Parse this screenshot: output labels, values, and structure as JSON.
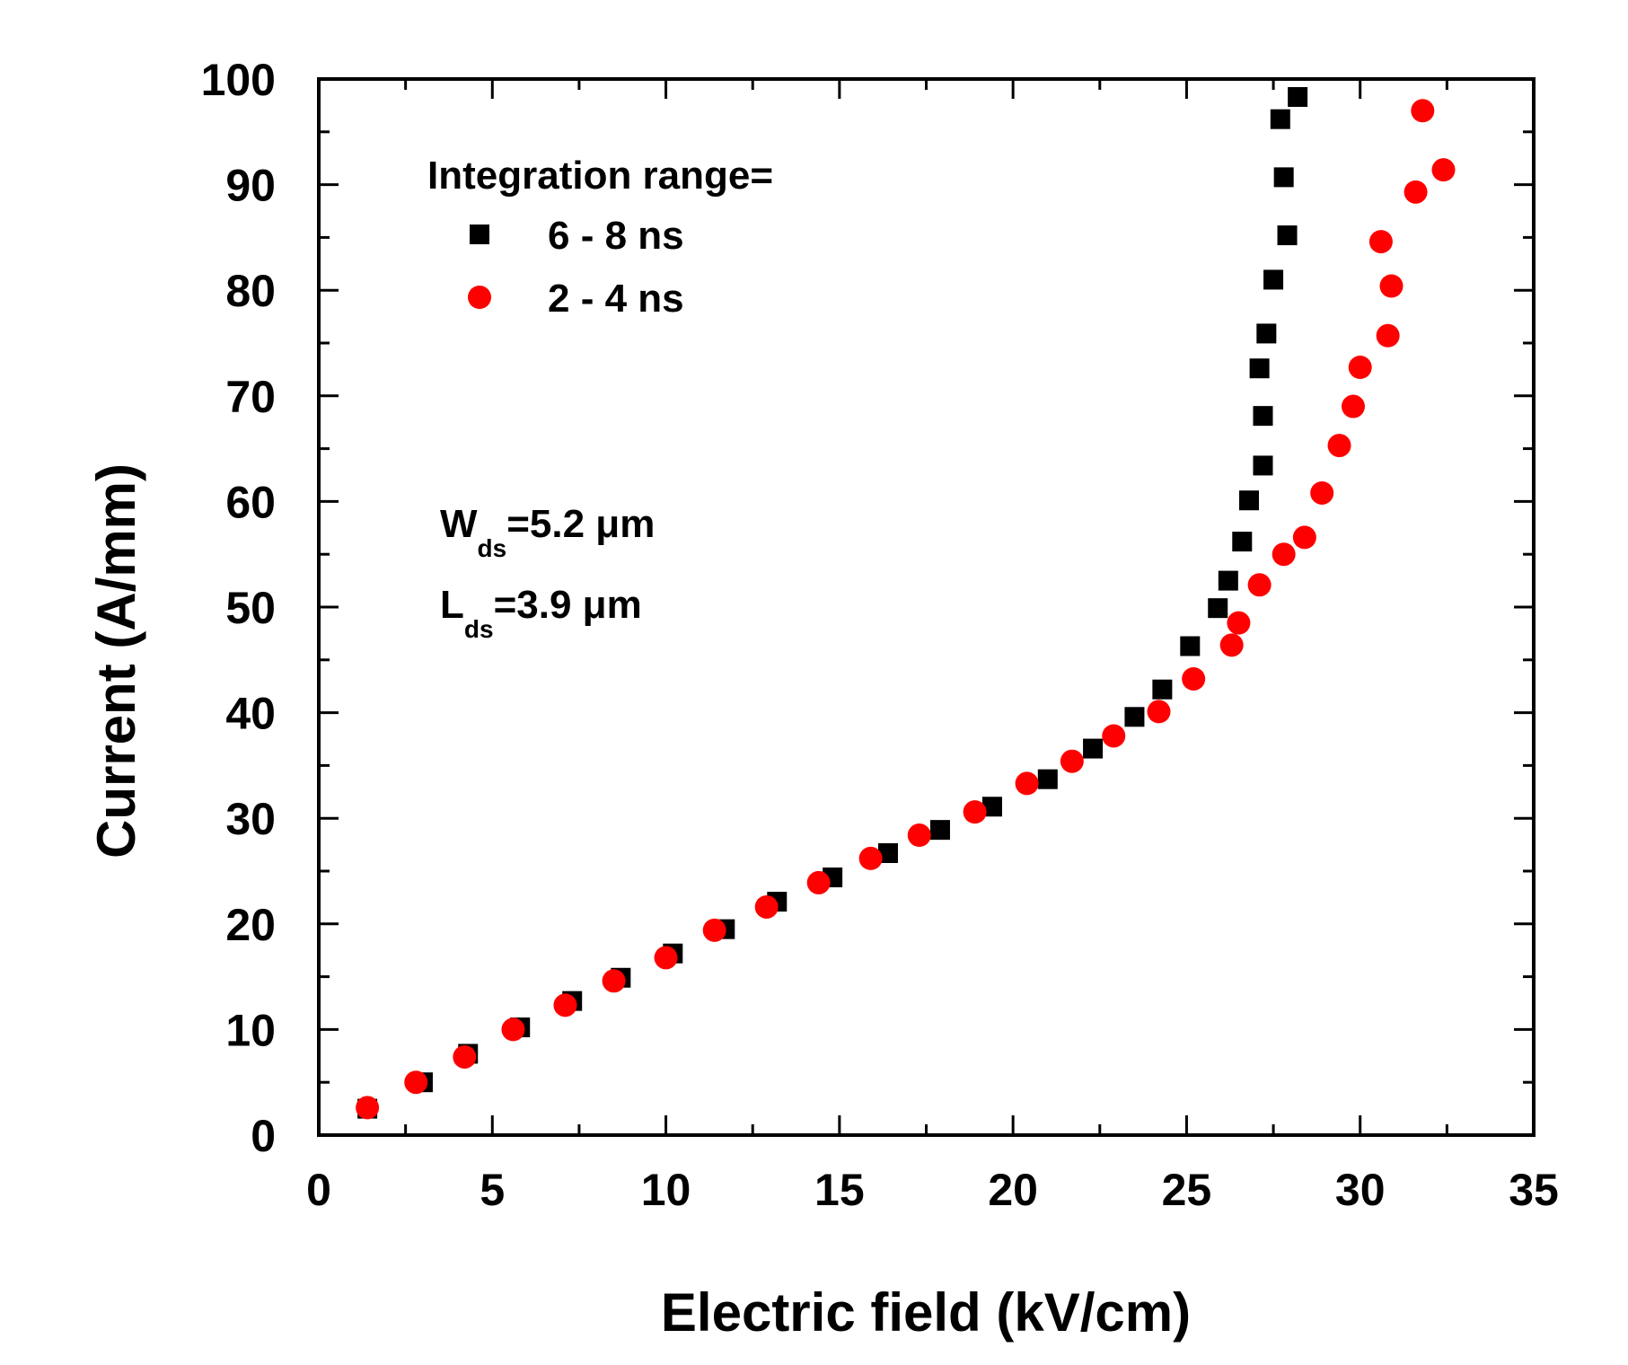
{
  "chart_data": {
    "type": "scatter",
    "xlabel": "Electric field  (kV/cm)",
    "ylabel": "Current  (A/mm)",
    "xlim": [
      0,
      35
    ],
    "ylim": [
      0,
      100
    ],
    "x_ticks": [
      0,
      5,
      10,
      15,
      20,
      25,
      30,
      35
    ],
    "y_ticks": [
      0,
      10,
      20,
      30,
      40,
      50,
      60,
      70,
      80,
      90,
      100
    ],
    "grid": false,
    "legend": {
      "title": "Integration range=",
      "placement": "top-left"
    },
    "annotations": [
      {
        "main": "W",
        "sub": "ds",
        "rest": "=5.2 μm"
      },
      {
        "main": "L",
        "sub": "ds",
        "rest": "=3.9 μm"
      }
    ],
    "series": [
      {
        "name": "6 - 8 ns",
        "marker": "square",
        "color": "#000000",
        "points": [
          [
            1.4,
            2.5
          ],
          [
            3.0,
            5.0
          ],
          [
            4.3,
            7.7
          ],
          [
            5.8,
            10.2
          ],
          [
            7.3,
            12.7
          ],
          [
            8.7,
            14.9
          ],
          [
            10.2,
            17.2
          ],
          [
            11.7,
            19.5
          ],
          [
            13.2,
            22.1
          ],
          [
            14.8,
            24.4
          ],
          [
            16.4,
            26.7
          ],
          [
            17.9,
            28.9
          ],
          [
            19.4,
            31.1
          ],
          [
            21.0,
            33.7
          ],
          [
            22.3,
            36.6
          ],
          [
            23.5,
            39.6
          ],
          [
            24.3,
            42.2
          ],
          [
            25.1,
            46.3
          ],
          [
            25.9,
            49.9
          ],
          [
            26.2,
            52.5
          ],
          [
            26.6,
            56.2
          ],
          [
            26.8,
            60.1
          ],
          [
            27.2,
            63.4
          ],
          [
            27.2,
            68.1
          ],
          [
            27.1,
            72.6
          ],
          [
            27.3,
            75.9
          ],
          [
            27.5,
            81.0
          ],
          [
            27.9,
            85.2
          ],
          [
            27.8,
            90.7
          ],
          [
            27.7,
            96.2
          ],
          [
            28.2,
            98.3
          ]
        ]
      },
      {
        "name": "2 - 4 ns",
        "marker": "circle",
        "color": "#ff0000",
        "points": [
          [
            1.4,
            2.6
          ],
          [
            2.8,
            5.0
          ],
          [
            4.2,
            7.4
          ],
          [
            5.6,
            10.0
          ],
          [
            7.1,
            12.3
          ],
          [
            8.5,
            14.6
          ],
          [
            10.0,
            16.8
          ],
          [
            11.4,
            19.4
          ],
          [
            12.9,
            21.6
          ],
          [
            14.4,
            23.9
          ],
          [
            15.9,
            26.2
          ],
          [
            17.3,
            28.4
          ],
          [
            18.9,
            30.6
          ],
          [
            20.4,
            33.3
          ],
          [
            21.7,
            35.4
          ],
          [
            22.9,
            37.8
          ],
          [
            24.2,
            40.1
          ],
          [
            25.2,
            43.2
          ],
          [
            26.3,
            46.4
          ],
          [
            26.5,
            48.5
          ],
          [
            27.1,
            52.1
          ],
          [
            27.8,
            55.0
          ],
          [
            28.4,
            56.6
          ],
          [
            28.9,
            60.8
          ],
          [
            29.4,
            65.3
          ],
          [
            29.8,
            69.0
          ],
          [
            30.0,
            72.7
          ],
          [
            30.8,
            75.7
          ],
          [
            30.9,
            80.4
          ],
          [
            30.6,
            84.6
          ],
          [
            31.6,
            89.3
          ],
          [
            31.8,
            97.0
          ],
          [
            32.4,
            91.4
          ]
        ]
      }
    ]
  }
}
